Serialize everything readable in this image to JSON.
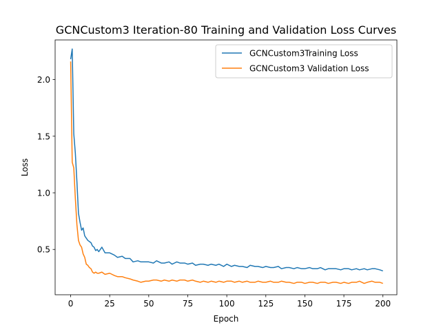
{
  "chart_data": {
    "type": "line",
    "title": "GCNCustom3 Iteration-80 Training and Validation Loss Curves",
    "xlabel": "Epoch",
    "ylabel": "Loss",
    "xlim": [
      -9.95,
      208.95
    ],
    "ylim": [
      0.1,
      2.35
    ],
    "xticks": [
      0,
      25,
      50,
      75,
      100,
      125,
      150,
      175,
      200
    ],
    "yticks": [
      0.5,
      1.0,
      1.5,
      2.0
    ],
    "ytick_labels": [
      "0.5",
      "1.0",
      "1.5",
      "2.0"
    ],
    "grid": false,
    "legend_position": "upper right",
    "series": [
      {
        "name": "GCNCustom3Training Loss",
        "color": "#1f77b4",
        "x": [
          0,
          1,
          2,
          3,
          4,
          5,
          6,
          7,
          8,
          9,
          10,
          11,
          12,
          13,
          14,
          15,
          16,
          17,
          18,
          19,
          20,
          22,
          25,
          28,
          30,
          33,
          35,
          38,
          40,
          43,
          45,
          48,
          50,
          53,
          55,
          58,
          60,
          63,
          65,
          68,
          70,
          73,
          75,
          78,
          80,
          83,
          85,
          88,
          90,
          93,
          95,
          98,
          100,
          103,
          105,
          108,
          110,
          113,
          115,
          118,
          120,
          123,
          125,
          128,
          130,
          133,
          135,
          138,
          140,
          143,
          145,
          148,
          150,
          153,
          155,
          158,
          160,
          163,
          165,
          168,
          170,
          173,
          175,
          178,
          180,
          183,
          185,
          188,
          190,
          193,
          195,
          198,
          200
        ],
        "y": [
          2.18,
          2.27,
          1.52,
          1.35,
          1.1,
          0.82,
          0.74,
          0.67,
          0.69,
          0.62,
          0.6,
          0.58,
          0.57,
          0.56,
          0.53,
          0.52,
          0.49,
          0.5,
          0.48,
          0.5,
          0.52,
          0.47,
          0.47,
          0.45,
          0.43,
          0.44,
          0.42,
          0.42,
          0.39,
          0.4,
          0.39,
          0.39,
          0.39,
          0.38,
          0.4,
          0.38,
          0.38,
          0.39,
          0.37,
          0.39,
          0.38,
          0.38,
          0.37,
          0.38,
          0.36,
          0.37,
          0.37,
          0.36,
          0.37,
          0.36,
          0.37,
          0.35,
          0.37,
          0.35,
          0.36,
          0.35,
          0.35,
          0.34,
          0.36,
          0.35,
          0.35,
          0.34,
          0.35,
          0.34,
          0.34,
          0.35,
          0.33,
          0.34,
          0.34,
          0.33,
          0.34,
          0.33,
          0.33,
          0.34,
          0.33,
          0.33,
          0.34,
          0.32,
          0.33,
          0.33,
          0.33,
          0.32,
          0.33,
          0.33,
          0.32,
          0.33,
          0.32,
          0.33,
          0.32,
          0.33,
          0.33,
          0.32,
          0.31
        ]
      },
      {
        "name": "GCNCustom3 Validation Loss",
        "color": "#ff7f0e",
        "x": [
          0,
          1,
          2,
          3,
          4,
          5,
          6,
          7,
          8,
          9,
          10,
          11,
          12,
          13,
          14,
          15,
          16,
          17,
          18,
          20,
          22,
          25,
          28,
          30,
          33,
          35,
          38,
          40,
          43,
          45,
          48,
          50,
          53,
          55,
          58,
          60,
          63,
          65,
          68,
          70,
          73,
          75,
          78,
          80,
          83,
          85,
          88,
          90,
          93,
          95,
          98,
          100,
          103,
          105,
          108,
          110,
          113,
          115,
          118,
          120,
          123,
          125,
          128,
          130,
          133,
          135,
          138,
          140,
          143,
          145,
          148,
          150,
          153,
          155,
          158,
          160,
          163,
          165,
          168,
          170,
          173,
          175,
          178,
          180,
          183,
          185,
          188,
          190,
          193,
          195,
          198,
          200
        ],
        "y": [
          2.16,
          1.27,
          1.22,
          0.95,
          0.72,
          0.58,
          0.54,
          0.52,
          0.46,
          0.43,
          0.37,
          0.36,
          0.34,
          0.33,
          0.3,
          0.29,
          0.3,
          0.29,
          0.29,
          0.3,
          0.28,
          0.29,
          0.27,
          0.26,
          0.26,
          0.25,
          0.24,
          0.23,
          0.22,
          0.21,
          0.22,
          0.22,
          0.23,
          0.23,
          0.22,
          0.23,
          0.22,
          0.23,
          0.22,
          0.23,
          0.23,
          0.22,
          0.23,
          0.22,
          0.21,
          0.22,
          0.21,
          0.22,
          0.21,
          0.22,
          0.21,
          0.22,
          0.22,
          0.21,
          0.22,
          0.21,
          0.22,
          0.21,
          0.21,
          0.22,
          0.21,
          0.21,
          0.22,
          0.21,
          0.21,
          0.22,
          0.21,
          0.21,
          0.2,
          0.21,
          0.21,
          0.2,
          0.21,
          0.21,
          0.2,
          0.21,
          0.21,
          0.2,
          0.21,
          0.21,
          0.2,
          0.21,
          0.2,
          0.21,
          0.21,
          0.22,
          0.2,
          0.21,
          0.22,
          0.21,
          0.21,
          0.2
        ]
      }
    ]
  }
}
